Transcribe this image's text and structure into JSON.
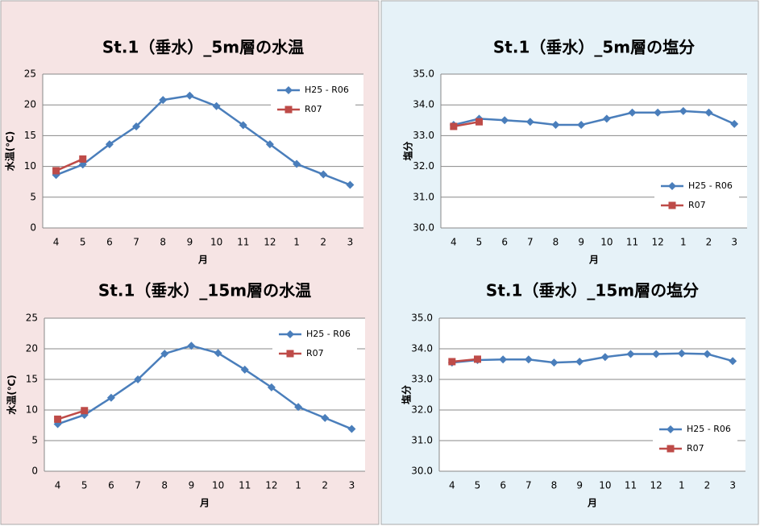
{
  "chart_data": [
    {
      "type": "line",
      "title": "St.1（垂水）_5m層の水温",
      "xlabel": "月",
      "ylabel": "水温(℃)",
      "categories": [
        "4",
        "5",
        "6",
        "7",
        "8",
        "9",
        "10",
        "11",
        "12",
        "1",
        "2",
        "3"
      ],
      "ylim": [
        0,
        25
      ],
      "yticks": [
        0,
        5,
        10,
        15,
        20,
        25
      ],
      "grid": true,
      "legend": "upper right",
      "series": [
        {
          "name": "H25 - R06",
          "color": "#4a7ebb",
          "marker": "diamond",
          "values": [
            8.6,
            10.3,
            13.6,
            16.5,
            20.8,
            21.5,
            19.8,
            16.7,
            13.6,
            10.4,
            8.7,
            7.0
          ]
        },
        {
          "name": "R07",
          "color": "#be4b48",
          "marker": "square",
          "values": [
            9.3,
            11.2,
            null,
            null,
            null,
            null,
            null,
            null,
            null,
            null,
            null,
            null
          ]
        }
      ]
    },
    {
      "type": "line",
      "title": "St.1（垂水）_5m層の塩分",
      "xlabel": "月",
      "ylabel": "塩分",
      "categories": [
        "4",
        "5",
        "6",
        "7",
        "8",
        "9",
        "10",
        "11",
        "12",
        "1",
        "2",
        "3"
      ],
      "ylim": [
        30,
        35
      ],
      "yticks": [
        {
          "value": 30,
          "label": "30.0"
        },
        {
          "value": 31,
          "label": "31.0"
        },
        {
          "value": 32,
          "label": "32.0"
        },
        {
          "value": 33,
          "label": "33.0"
        },
        {
          "value": 34,
          "label": "34.0"
        },
        {
          "value": 35,
          "label": "35.0"
        }
      ],
      "grid": true,
      "legend": "lower right",
      "series": [
        {
          "name": "H25 - R06",
          "color": "#4a7ebb",
          "marker": "diamond",
          "values": [
            33.35,
            33.55,
            33.5,
            33.45,
            33.35,
            33.35,
            33.55,
            33.75,
            33.75,
            33.8,
            33.75,
            33.38
          ]
        },
        {
          "name": "R07",
          "color": "#be4b48",
          "marker": "square",
          "values": [
            33.3,
            33.45,
            null,
            null,
            null,
            null,
            null,
            null,
            null,
            null,
            null,
            null
          ]
        }
      ]
    },
    {
      "type": "line",
      "title": "St.1（垂水）_15m層の水温",
      "xlabel": "月",
      "ylabel": "水温(℃)",
      "categories": [
        "4",
        "5",
        "6",
        "7",
        "8",
        "9",
        "10",
        "11",
        "12",
        "1",
        "2",
        "3"
      ],
      "ylim": [
        0,
        25
      ],
      "yticks": [
        0,
        5,
        10,
        15,
        20,
        25
      ],
      "grid": true,
      "legend": "upper right",
      "series": [
        {
          "name": "H25 - R06",
          "color": "#4a7ebb",
          "marker": "diamond",
          "values": [
            7.7,
            9.2,
            12.0,
            15.0,
            19.2,
            20.5,
            19.3,
            16.6,
            13.7,
            10.5,
            8.7,
            6.9
          ]
        },
        {
          "name": "R07",
          "color": "#be4b48",
          "marker": "square",
          "values": [
            8.5,
            9.9,
            null,
            null,
            null,
            null,
            null,
            null,
            null,
            null,
            null,
            null
          ]
        }
      ]
    },
    {
      "type": "line",
      "title": "St.1（垂水）_15m層の塩分",
      "xlabel": "月",
      "ylabel": "塩分",
      "categories": [
        "4",
        "5",
        "6",
        "7",
        "8",
        "9",
        "10",
        "11",
        "12",
        "1",
        "2",
        "3"
      ],
      "ylim": [
        30,
        35
      ],
      "yticks": [
        {
          "value": 30,
          "label": "30.0"
        },
        {
          "value": 31,
          "label": "31.0"
        },
        {
          "value": 32,
          "label": "32.0"
        },
        {
          "value": 33,
          "label": "33.0"
        },
        {
          "value": 34,
          "label": "34.0"
        },
        {
          "value": 35,
          "label": "35.0"
        }
      ],
      "grid": true,
      "legend": "lower right",
      "series": [
        {
          "name": "H25 - R06",
          "color": "#4a7ebb",
          "marker": "diamond",
          "values": [
            33.55,
            33.63,
            33.65,
            33.65,
            33.55,
            33.58,
            33.73,
            33.83,
            33.83,
            33.85,
            33.83,
            33.6
          ]
        },
        {
          "name": "R07",
          "color": "#be4b48",
          "marker": "square",
          "values": [
            33.58,
            33.66,
            null,
            null,
            null,
            null,
            null,
            null,
            null,
            null,
            null,
            null
          ]
        }
      ]
    }
  ]
}
